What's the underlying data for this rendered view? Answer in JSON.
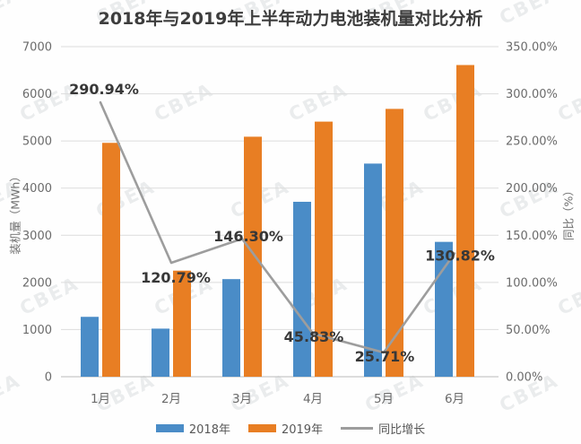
{
  "watermark": {
    "text": "CBEA"
  },
  "colors": {
    "bar_2018": "#4A8CC7",
    "bar_2019": "#E87E23",
    "growth_line": "#9D9D9D",
    "grid": "#DCDCDC",
    "axis_line": "#BBBBBB",
    "axis_text": "#6B6B6B",
    "label_text": "#373737"
  },
  "chart_data": {
    "type": "bar+line combo",
    "title": "2018年与2019年上半年动力电池装机量对比分析",
    "categories": [
      "1月",
      "2月",
      "3月",
      "4月",
      "5月",
      "6月"
    ],
    "series": [
      {
        "name": "2018年",
        "type": "bar",
        "axis": "left",
        "values": [
          1270,
          1020,
          2070,
          3710,
          4520,
          2860
        ]
      },
      {
        "name": "2019年",
        "type": "bar",
        "axis": "left",
        "values": [
          4960,
          2250,
          5090,
          5410,
          5680,
          6610
        ]
      },
      {
        "name": "同比增长",
        "type": "line",
        "axis": "right",
        "values": [
          290.94,
          120.79,
          146.3,
          45.83,
          25.71,
          130.82
        ],
        "labels": [
          "290.94%",
          "120.79%",
          "146.30%",
          "45.83%",
          "25.71%",
          "130.82%"
        ]
      }
    ],
    "left_axis": {
      "label": "装机量（MWh）",
      "min": 0,
      "max": 7000,
      "step": 1000,
      "ticks": [
        "0",
        "1000",
        "2000",
        "3000",
        "4000",
        "5000",
        "6000",
        "7000"
      ]
    },
    "right_axis": {
      "label": "同比（%）",
      "min": 0,
      "max": 350,
      "step": 50,
      "ticks": [
        "0.00%",
        "50.00%",
        "100.00%",
        "150.00%",
        "200.00%",
        "250.00%",
        "300.00%",
        "350.00%"
      ]
    },
    "legend": {
      "position": "bottom",
      "entries": [
        "2018年",
        "2019年",
        "同比增长"
      ]
    },
    "grid": true
  }
}
